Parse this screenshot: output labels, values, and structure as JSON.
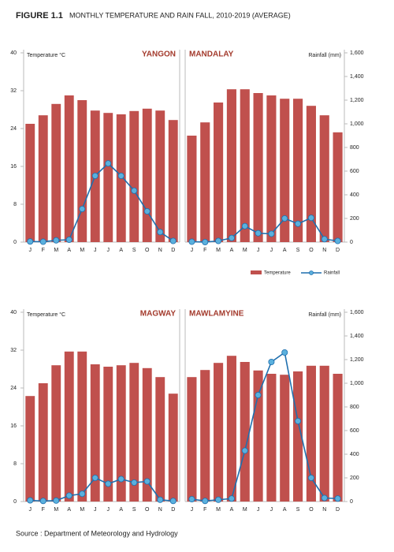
{
  "figure_label": "FIGURE 1.1",
  "title": "MONTHLY TEMPERATURE AND RAIN FALL, 2010-2019 (AVERAGE)",
  "source": "Source : Department of Meteorology and Hydrology",
  "legend": [
    {
      "name": "Temperature",
      "color": "#c0504d"
    },
    {
      "name": "Rainfall",
      "color": "#1f6fae",
      "marker_color": "#5ab0dd"
    }
  ],
  "chart_data": [
    {
      "type": "bar-line",
      "title": "YANGON",
      "y_label": "Temperature °C",
      "categories": [
        "J",
        "F",
        "M",
        "A",
        "M",
        "J",
        "J",
        "A",
        "S",
        "O",
        "N",
        "D"
      ],
      "series": [
        {
          "values": [
            25,
            26.8,
            29.2,
            31,
            30,
            27.8,
            27.3,
            27,
            27.7,
            28.2,
            27.8,
            25.8
          ]
        },
        {
          "axis": "y2",
          "values": [
            5,
            3,
            15,
            20,
            280,
            560,
            665,
            560,
            435,
            260,
            85,
            10
          ]
        }
      ],
      "ylim": [
        0,
        40
      ],
      "yticks": [
        0,
        8,
        16,
        24,
        32,
        40
      ],
      "y2lim": [
        0,
        1600
      ]
    },
    {
      "type": "bar-line",
      "title": "MANDALAY",
      "y2_label": "Rainfall (mm)",
      "categories": [
        "J",
        "F",
        "M",
        "A",
        "M",
        "J",
        "J",
        "A",
        "S",
        "O",
        "N",
        "D"
      ],
      "series": [
        {
          "values": [
            22.5,
            25.3,
            29.5,
            32.3,
            32.3,
            31.5,
            31,
            30.3,
            30.3,
            28.8,
            26.8,
            23.2
          ]
        },
        {
          "axis": "y2",
          "values": [
            3,
            0,
            10,
            35,
            135,
            75,
            70,
            200,
            155,
            205,
            25,
            10
          ]
        }
      ],
      "ylim": [
        0,
        40
      ],
      "y2lim": [
        0,
        1600
      ],
      "y2ticks": [
        0,
        200,
        400,
        600,
        800,
        {
          "value": 1000,
          "label": "1,000"
        },
        {
          "value": 1200,
          "label": "1,200"
        },
        {
          "value": 1400,
          "label": "1,400"
        },
        {
          "value": 1600,
          "label": "1,600"
        }
      ]
    },
    {
      "type": "bar-line",
      "title": "MAGWAY",
      "y_label": "Temperature °C",
      "categories": [
        "J",
        "F",
        "M",
        "A",
        "M",
        "J",
        "J",
        "A",
        "S",
        "O",
        "N",
        "D"
      ],
      "series": [
        {
          "values": [
            22.3,
            25,
            28.8,
            31.7,
            31.7,
            29,
            28.5,
            28.8,
            29.3,
            28.2,
            26.3,
            22.8
          ]
        },
        {
          "axis": "y2",
          "values": [
            10,
            5,
            8,
            50,
            65,
            200,
            150,
            190,
            160,
            170,
            15,
            5
          ]
        }
      ],
      "ylim": [
        0,
        40
      ],
      "yticks": [
        0,
        8,
        16,
        24,
        32,
        40
      ],
      "y2lim": [
        0,
        1600
      ]
    },
    {
      "type": "bar-line",
      "title": "MAWLAMYINE",
      "y2_label": "Rainfall (mm)",
      "categories": [
        "J",
        "F",
        "M",
        "A",
        "M",
        "J",
        "J",
        "A",
        "S",
        "O",
        "N",
        "D"
      ],
      "series": [
        {
          "values": [
            26.3,
            27.8,
            29.3,
            30.8,
            29.5,
            27.7,
            27,
            26.8,
            27.5,
            28.7,
            28.7,
            27
          ]
        },
        {
          "axis": "y2",
          "values": [
            20,
            5,
            15,
            25,
            430,
            900,
            1180,
            1260,
            680,
            200,
            30,
            25
          ]
        }
      ],
      "ylim": [
        0,
        40
      ],
      "y2lim": [
        0,
        1600
      ],
      "y2ticks": [
        0,
        200,
        400,
        600,
        800,
        {
          "value": 1000,
          "label": "1,000"
        },
        {
          "value": 1200,
          "label": "1,200"
        },
        {
          "value": 1400,
          "label": "1,400"
        },
        {
          "value": 1600,
          "label": "1,600"
        }
      ]
    }
  ]
}
